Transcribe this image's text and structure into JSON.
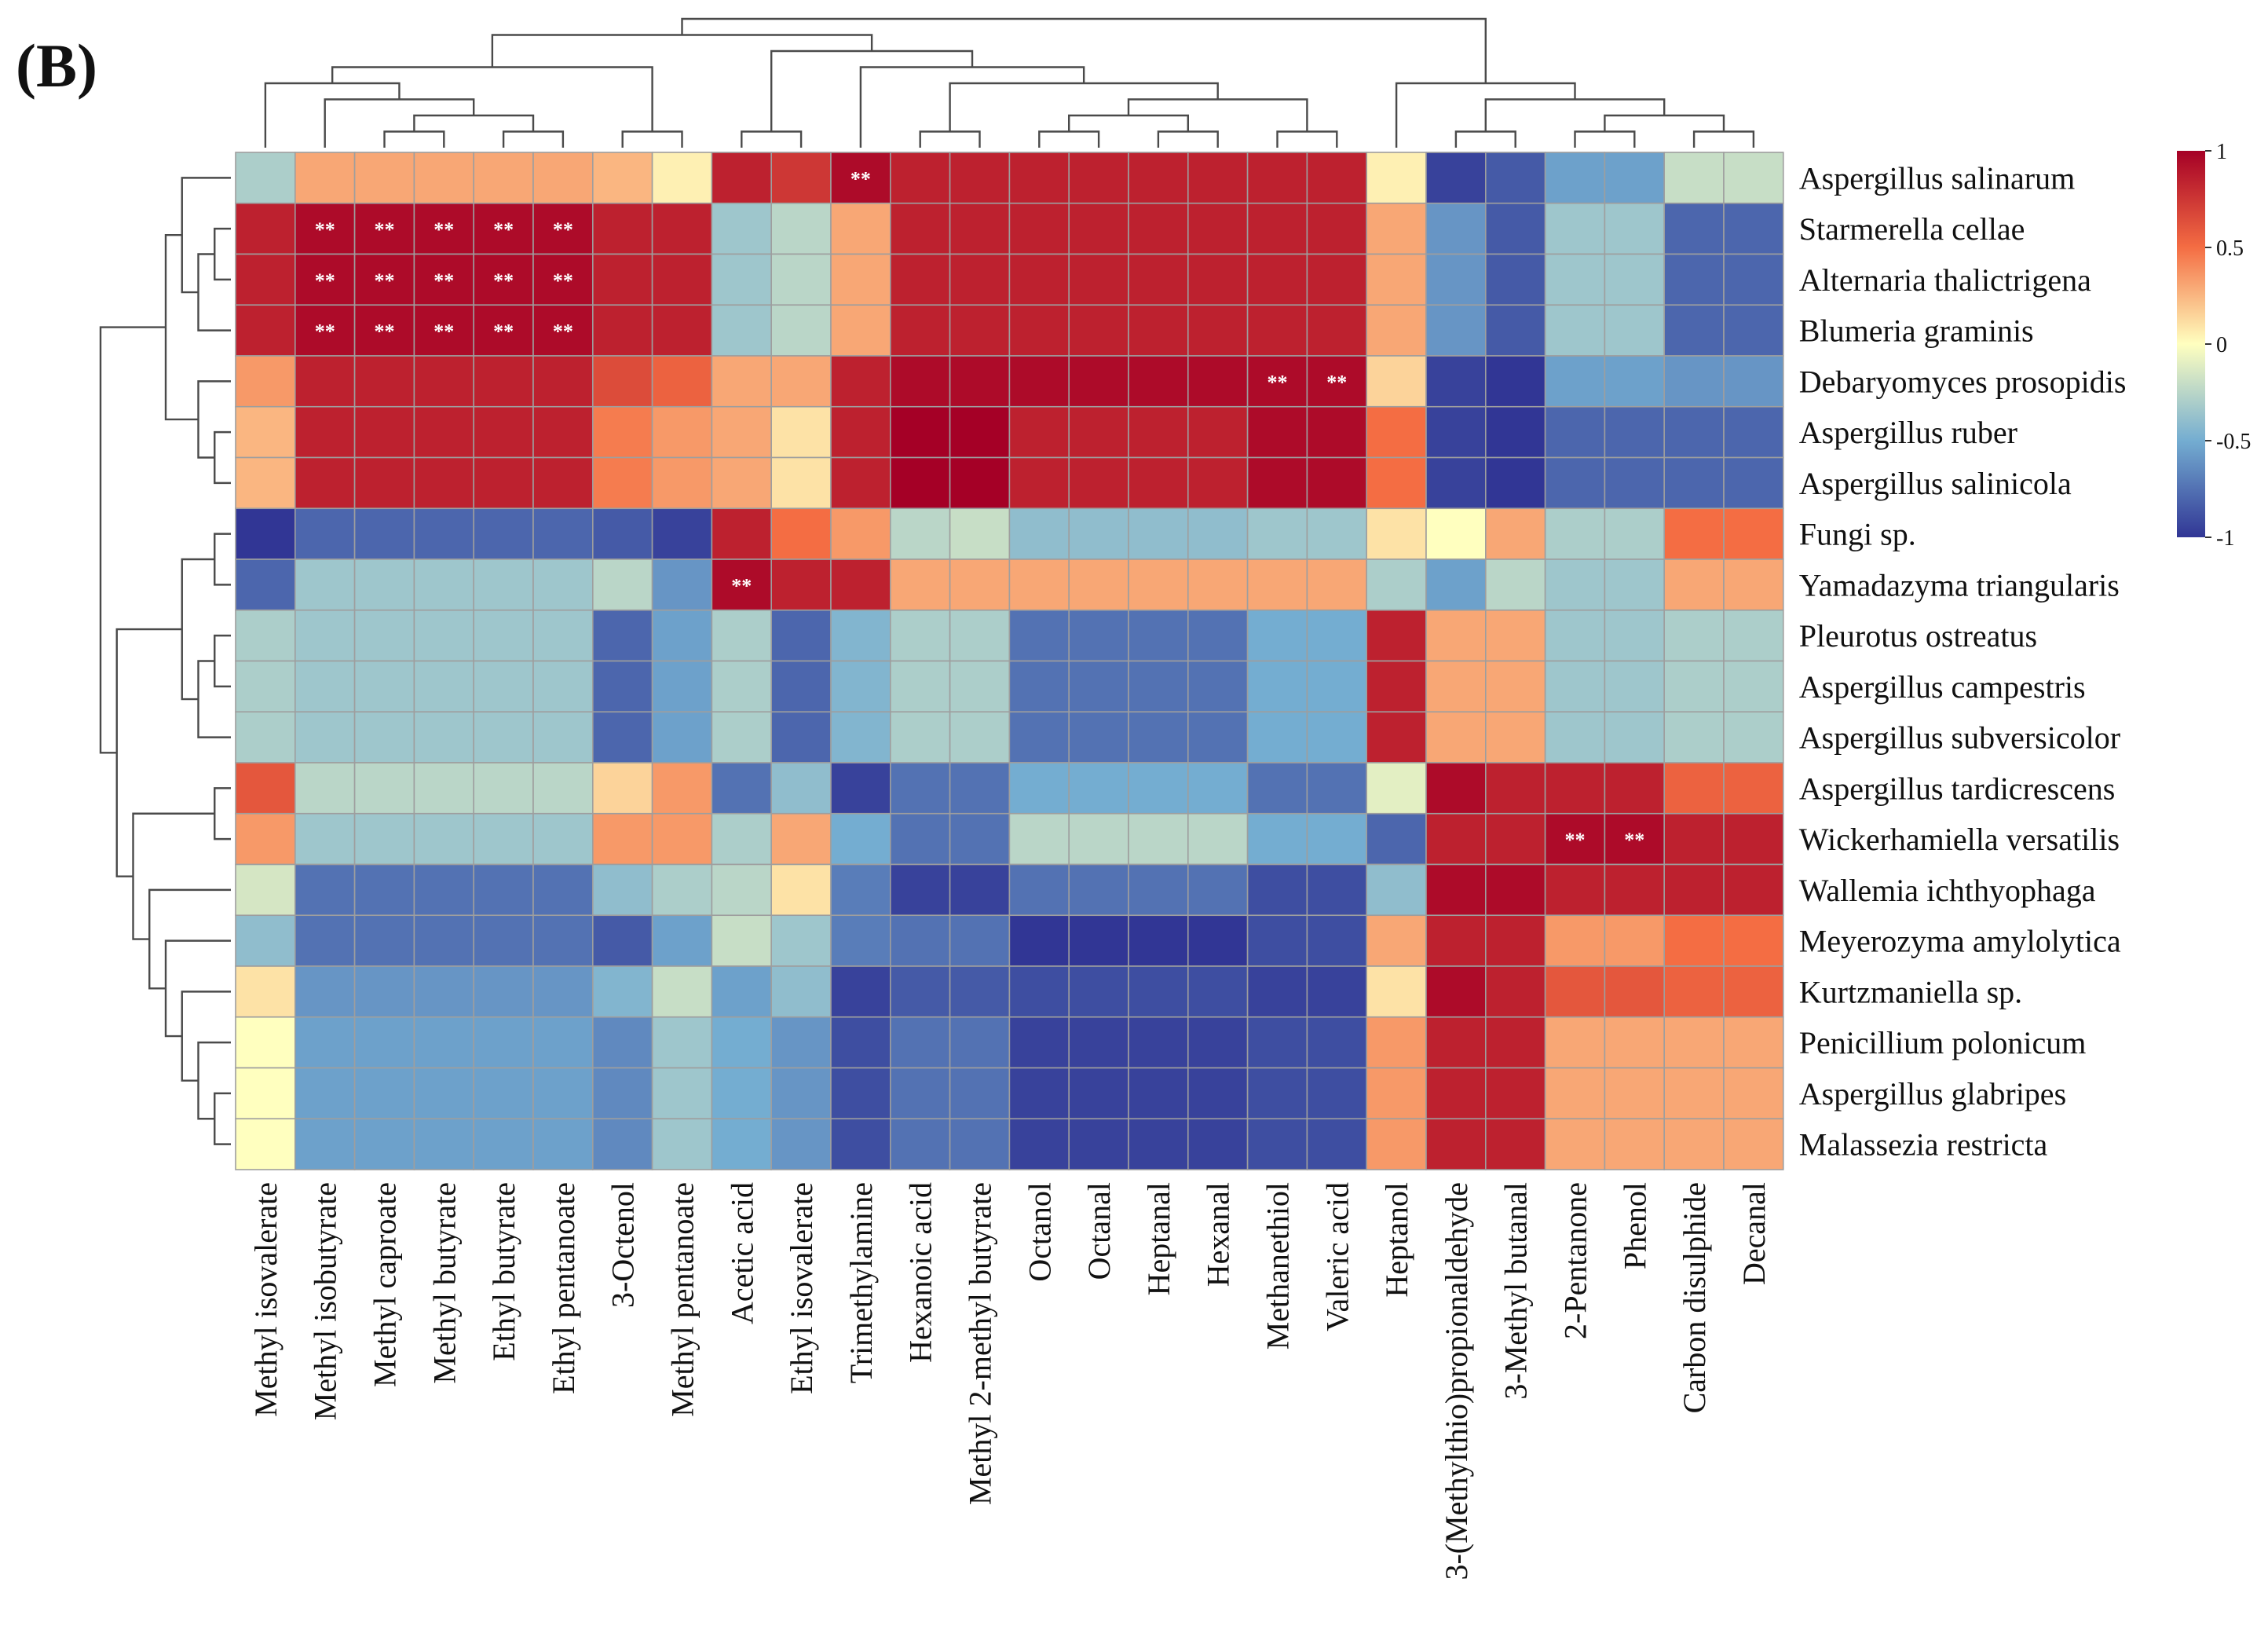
{
  "panel_label": "(B)",
  "chart_data": {
    "type": "heatmap",
    "title": "",
    "xlabel": "",
    "ylabel": "",
    "rows": [
      "Aspergillus salinarum",
      "Starmerella cellae",
      "Alternaria thalictrigena",
      "Blumeria graminis",
      "Debaryomyces prosopidis",
      "Aspergillus ruber",
      "Aspergillus salinicola",
      "Fungi sp.",
      "Yamadazyma triangularis",
      "Pleurotus ostreatus",
      "Aspergillus campestris",
      "Aspergillus subversicolor",
      "Aspergillus tardicrescens",
      "Wickerhamiella versatilis",
      "Wallemia ichthyophaga",
      "Meyerozyma amylolytica",
      "Kurtzmaniella sp.",
      "Penicillium polonicum",
      "Aspergillus glabripes",
      "Malassezia restricta"
    ],
    "columns": [
      "Methyl isovalerate",
      "Methyl isobutyrate",
      "Methyl caproate",
      "Methyl butyrate",
      "Ethyl butyrate",
      "Ethyl pentanoate",
      "3-Octenol",
      "Methyl pentanoate",
      "Acetic acid",
      "Ethyl isovalerate",
      "Trimethylamine",
      "Hexanoic acid",
      "Methyl 2-methyl butyrate",
      "Octanol",
      "Octanal",
      "Heptanal",
      "Hexanal",
      "Methanethiol",
      "Valeric acid",
      "Heptanol",
      "3-(Methylthio)propionaldehyde",
      "3-Methyl butanal",
      "2-Pentanone",
      "Phenol",
      "Carbon disulphide",
      "Decanal"
    ],
    "values": [
      [
        -0.3,
        0.3,
        0.3,
        0.3,
        0.3,
        0.3,
        0.25,
        0.05,
        0.85,
        0.75,
        0.95,
        0.85,
        0.85,
        0.85,
        0.85,
        0.85,
        0.85,
        0.85,
        0.85,
        0.05,
        -0.95,
        -0.85,
        -0.55,
        -0.55,
        -0.2,
        -0.2
      ],
      [
        0.85,
        0.95,
        0.95,
        0.95,
        0.95,
        0.95,
        0.85,
        0.85,
        -0.35,
        -0.25,
        0.3,
        0.85,
        0.85,
        0.85,
        0.85,
        0.85,
        0.85,
        0.85,
        0.85,
        0.3,
        -0.6,
        -0.85,
        -0.35,
        -0.35,
        -0.8,
        -0.8
      ],
      [
        0.85,
        0.95,
        0.95,
        0.95,
        0.95,
        0.95,
        0.85,
        0.85,
        -0.35,
        -0.25,
        0.3,
        0.85,
        0.85,
        0.85,
        0.85,
        0.85,
        0.85,
        0.85,
        0.85,
        0.3,
        -0.6,
        -0.85,
        -0.35,
        -0.35,
        -0.8,
        -0.8
      ],
      [
        0.85,
        0.95,
        0.95,
        0.95,
        0.95,
        0.95,
        0.85,
        0.85,
        -0.35,
        -0.25,
        0.3,
        0.85,
        0.85,
        0.85,
        0.85,
        0.85,
        0.85,
        0.85,
        0.85,
        0.3,
        -0.6,
        -0.85,
        -0.35,
        -0.35,
        -0.8,
        -0.8
      ],
      [
        0.35,
        0.85,
        0.85,
        0.85,
        0.85,
        0.85,
        0.65,
        0.55,
        0.3,
        0.3,
        0.85,
        0.95,
        0.95,
        0.95,
        0.95,
        0.95,
        0.95,
        0.95,
        0.95,
        0.15,
        -0.95,
        -1.0,
        -0.55,
        -0.55,
        -0.6,
        -0.6
      ],
      [
        0.25,
        0.85,
        0.85,
        0.85,
        0.85,
        0.85,
        0.45,
        0.35,
        0.3,
        0.1,
        0.85,
        1.0,
        1.0,
        0.85,
        0.85,
        0.85,
        0.85,
        0.95,
        0.95,
        0.5,
        -0.95,
        -1.0,
        -0.8,
        -0.8,
        -0.8,
        -0.8
      ],
      [
        0.25,
        0.85,
        0.85,
        0.85,
        0.85,
        0.85,
        0.45,
        0.35,
        0.3,
        0.1,
        0.85,
        1.0,
        1.0,
        0.85,
        0.85,
        0.85,
        0.85,
        0.95,
        0.95,
        0.5,
        -0.95,
        -1.0,
        -0.8,
        -0.8,
        -0.8,
        -0.8
      ],
      [
        -1.0,
        -0.8,
        -0.8,
        -0.8,
        -0.8,
        -0.8,
        -0.85,
        -0.95,
        0.85,
        0.5,
        0.35,
        -0.25,
        -0.2,
        -0.4,
        -0.4,
        -0.4,
        -0.4,
        -0.35,
        -0.35,
        0.1,
        0.0,
        0.3,
        -0.3,
        -0.3,
        0.5,
        0.5
      ],
      [
        -0.8,
        -0.35,
        -0.35,
        -0.35,
        -0.35,
        -0.35,
        -0.25,
        -0.6,
        0.95,
        0.85,
        0.85,
        0.3,
        0.3,
        0.3,
        0.3,
        0.3,
        0.3,
        0.3,
        0.3,
        -0.3,
        -0.55,
        -0.25,
        -0.35,
        -0.35,
        0.3,
        0.3
      ],
      [
        -0.3,
        -0.35,
        -0.35,
        -0.35,
        -0.35,
        -0.35,
        -0.8,
        -0.55,
        -0.3,
        -0.8,
        -0.45,
        -0.3,
        -0.3,
        -0.75,
        -0.75,
        -0.75,
        -0.75,
        -0.5,
        -0.5,
        0.85,
        0.3,
        0.3,
        -0.35,
        -0.35,
        -0.3,
        -0.3
      ],
      [
        -0.3,
        -0.35,
        -0.35,
        -0.35,
        -0.35,
        -0.35,
        -0.8,
        -0.55,
        -0.3,
        -0.8,
        -0.45,
        -0.3,
        -0.3,
        -0.75,
        -0.75,
        -0.75,
        -0.75,
        -0.5,
        -0.5,
        0.85,
        0.3,
        0.3,
        -0.35,
        -0.35,
        -0.3,
        -0.3
      ],
      [
        -0.3,
        -0.35,
        -0.35,
        -0.35,
        -0.35,
        -0.35,
        -0.8,
        -0.55,
        -0.3,
        -0.8,
        -0.45,
        -0.3,
        -0.3,
        -0.75,
        -0.75,
        -0.75,
        -0.75,
        -0.5,
        -0.5,
        0.85,
        0.3,
        0.3,
        -0.35,
        -0.35,
        -0.3,
        -0.3
      ],
      [
        0.6,
        -0.25,
        -0.25,
        -0.25,
        -0.25,
        -0.25,
        0.15,
        0.35,
        -0.75,
        -0.4,
        -0.95,
        -0.75,
        -0.75,
        -0.5,
        -0.5,
        -0.5,
        -0.5,
        -0.75,
        -0.75,
        -0.1,
        0.95,
        0.85,
        0.85,
        0.85,
        0.55,
        0.55
      ],
      [
        0.35,
        -0.35,
        -0.35,
        -0.35,
        -0.35,
        -0.35,
        0.35,
        0.35,
        -0.3,
        0.3,
        -0.5,
        -0.75,
        -0.75,
        -0.25,
        -0.25,
        -0.25,
        -0.25,
        -0.5,
        -0.5,
        -0.8,
        0.85,
        0.85,
        0.95,
        0.95,
        0.85,
        0.85
      ],
      [
        -0.15,
        -0.75,
        -0.75,
        -0.75,
        -0.75,
        -0.75,
        -0.4,
        -0.3,
        -0.25,
        0.1,
        -0.7,
        -0.95,
        -0.95,
        -0.75,
        -0.75,
        -0.75,
        -0.75,
        -0.9,
        -0.9,
        -0.4,
        0.95,
        0.95,
        0.85,
        0.85,
        0.85,
        0.85
      ],
      [
        -0.4,
        -0.75,
        -0.75,
        -0.75,
        -0.75,
        -0.75,
        -0.85,
        -0.55,
        -0.2,
        -0.35,
        -0.7,
        -0.75,
        -0.75,
        -1.0,
        -1.0,
        -1.0,
        -1.0,
        -0.9,
        -0.9,
        0.3,
        0.85,
        0.85,
        0.35,
        0.35,
        0.5,
        0.5
      ],
      [
        0.1,
        -0.6,
        -0.6,
        -0.6,
        -0.6,
        -0.6,
        -0.45,
        -0.2,
        -0.55,
        -0.4,
        -0.95,
        -0.85,
        -0.85,
        -0.9,
        -0.9,
        -0.9,
        -0.9,
        -0.95,
        -0.95,
        0.1,
        0.95,
        0.85,
        0.6,
        0.6,
        0.55,
        0.55
      ],
      [
        0.0,
        -0.55,
        -0.55,
        -0.55,
        -0.55,
        -0.55,
        -0.65,
        -0.35,
        -0.5,
        -0.6,
        -0.9,
        -0.75,
        -0.75,
        -0.95,
        -0.95,
        -0.95,
        -0.95,
        -0.9,
        -0.9,
        0.35,
        0.85,
        0.85,
        0.3,
        0.3,
        0.3,
        0.3
      ],
      [
        0.0,
        -0.55,
        -0.55,
        -0.55,
        -0.55,
        -0.55,
        -0.65,
        -0.35,
        -0.5,
        -0.6,
        -0.9,
        -0.75,
        -0.75,
        -0.95,
        -0.95,
        -0.95,
        -0.95,
        -0.9,
        -0.9,
        0.35,
        0.85,
        0.85,
        0.3,
        0.3,
        0.3,
        0.3
      ],
      [
        0.0,
        -0.55,
        -0.55,
        -0.55,
        -0.55,
        -0.55,
        -0.65,
        -0.35,
        -0.5,
        -0.6,
        -0.9,
        -0.75,
        -0.75,
        -0.95,
        -0.95,
        -0.95,
        -0.95,
        -0.9,
        -0.9,
        0.35,
        0.85,
        0.85,
        0.3,
        0.3,
        0.3,
        0.3
      ]
    ],
    "significance": [
      {
        "row": 0,
        "col": 10,
        "label": "**"
      },
      {
        "row": 1,
        "col": 1,
        "label": "**"
      },
      {
        "row": 1,
        "col": 2,
        "label": "**"
      },
      {
        "row": 1,
        "col": 3,
        "label": "**"
      },
      {
        "row": 1,
        "col": 4,
        "label": "**"
      },
      {
        "row": 1,
        "col": 5,
        "label": "**"
      },
      {
        "row": 2,
        "col": 1,
        "label": "**"
      },
      {
        "row": 2,
        "col": 2,
        "label": "**"
      },
      {
        "row": 2,
        "col": 3,
        "label": "**"
      },
      {
        "row": 2,
        "col": 4,
        "label": "**"
      },
      {
        "row": 2,
        "col": 5,
        "label": "**"
      },
      {
        "row": 3,
        "col": 1,
        "label": "**"
      },
      {
        "row": 3,
        "col": 2,
        "label": "**"
      },
      {
        "row": 3,
        "col": 3,
        "label": "**"
      },
      {
        "row": 3,
        "col": 4,
        "label": "**"
      },
      {
        "row": 3,
        "col": 5,
        "label": "**"
      },
      {
        "row": 4,
        "col": 17,
        "label": "**"
      },
      {
        "row": 4,
        "col": 18,
        "label": "**"
      },
      {
        "row": 8,
        "col": 8,
        "label": "**"
      },
      {
        "row": 13,
        "col": 22,
        "label": "**"
      },
      {
        "row": 13,
        "col": 23,
        "label": "**"
      }
    ],
    "colorbar": {
      "range": [
        -1,
        1
      ],
      "ticks": [
        "1",
        "0.5",
        "0",
        "-0.5",
        "-1"
      ],
      "colors": {
        "low": "#313695",
        "mid_low": "#74add1",
        "zero": "#ffffbf",
        "mid_high": "#f46d43",
        "high": "#a50026"
      }
    },
    "grid_color": "#9e9e9e"
  }
}
